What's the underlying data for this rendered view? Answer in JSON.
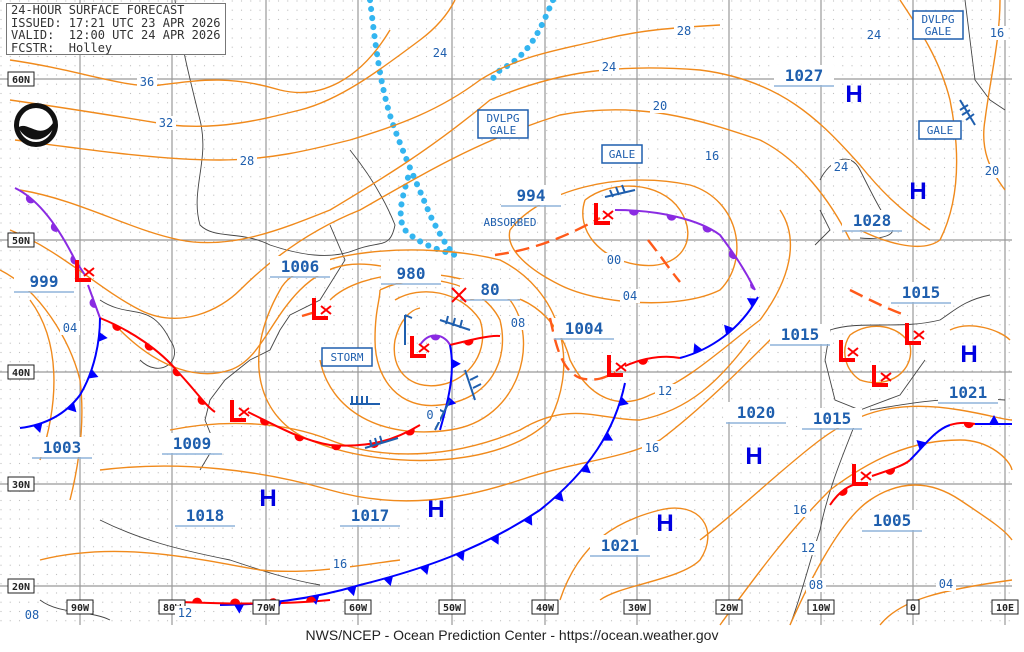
{
  "header": {
    "title": "24-HOUR SURFACE FORECAST",
    "issued": "ISSUED: 17:21 UTC 23 APR 2026",
    "valid": "VALID:  12:00 UTC 24 APR 2026",
    "forecaster": "FCSTR:  Holley"
  },
  "logo": {
    "text": "NOAA"
  },
  "footer": {
    "credit": "NWS/NCEP - Ocean Prediction Center - https://ocean.weather.gov"
  },
  "lat_labels": [
    "60N",
    "50N",
    "40N",
    "30N",
    "20N"
  ],
  "lon_labels": [
    "90W",
    "80W",
    "70W",
    "60W",
    "50W",
    "40W",
    "30W",
    "20W",
    "10W",
    "0",
    "10E"
  ],
  "colors": {
    "isobar": "#f08a1c",
    "label": "#1f5fae",
    "low": "#ff0000",
    "high": "#0000e0",
    "cold_front": "#0000ff",
    "warm_front": "#ff0000",
    "occluded_front": "#8a2be2",
    "ice_edge": "#33b5f0",
    "trough": "#ff5a1a"
  },
  "lows": [
    {
      "symbol": "L",
      "pressure": "999"
    },
    {
      "symbol": "L",
      "pressure": "1003"
    },
    {
      "symbol": "L",
      "pressure": "1009"
    },
    {
      "symbol": "L",
      "pressure": "1006"
    },
    {
      "symbol": "L",
      "pressure": "980"
    },
    {
      "symbol": "L",
      "pressure": "994"
    },
    {
      "symbol": "L",
      "pressure": "1004"
    },
    {
      "symbol": "L",
      "pressure": "1015"
    },
    {
      "symbol": "L",
      "pressure": "1015"
    },
    {
      "symbol": "L",
      "pressure": "1015"
    },
    {
      "symbol": "L",
      "pressure": "1005"
    }
  ],
  "previous_position": {
    "pressure": "80"
  },
  "highs": [
    {
      "symbol": "H",
      "pressure": "1027"
    },
    {
      "symbol": "H",
      "pressure": "1028"
    },
    {
      "symbol": "H",
      "pressure": "1021"
    },
    {
      "symbol": "H",
      "pressure": "1020"
    },
    {
      "symbol": "H",
      "pressure": "1021"
    },
    {
      "symbol": "H",
      "pressure": "1017"
    },
    {
      "symbol": "H",
      "pressure": "1018"
    }
  ],
  "warnings": [
    "STORM",
    "DVLPG GALE",
    "GALE",
    "DVLPG GALE",
    "GALE"
  ],
  "annotations": [
    "ABSORBED"
  ],
  "isobar_labels": [
    "36",
    "32",
    "28",
    "24",
    "28",
    "24",
    "20",
    "16",
    "24",
    "16",
    "24",
    "20",
    "04",
    "08",
    "00",
    "04",
    "12",
    "16",
    "16",
    "12",
    "08",
    "04",
    "16",
    "12",
    "08",
    "0"
  ]
}
